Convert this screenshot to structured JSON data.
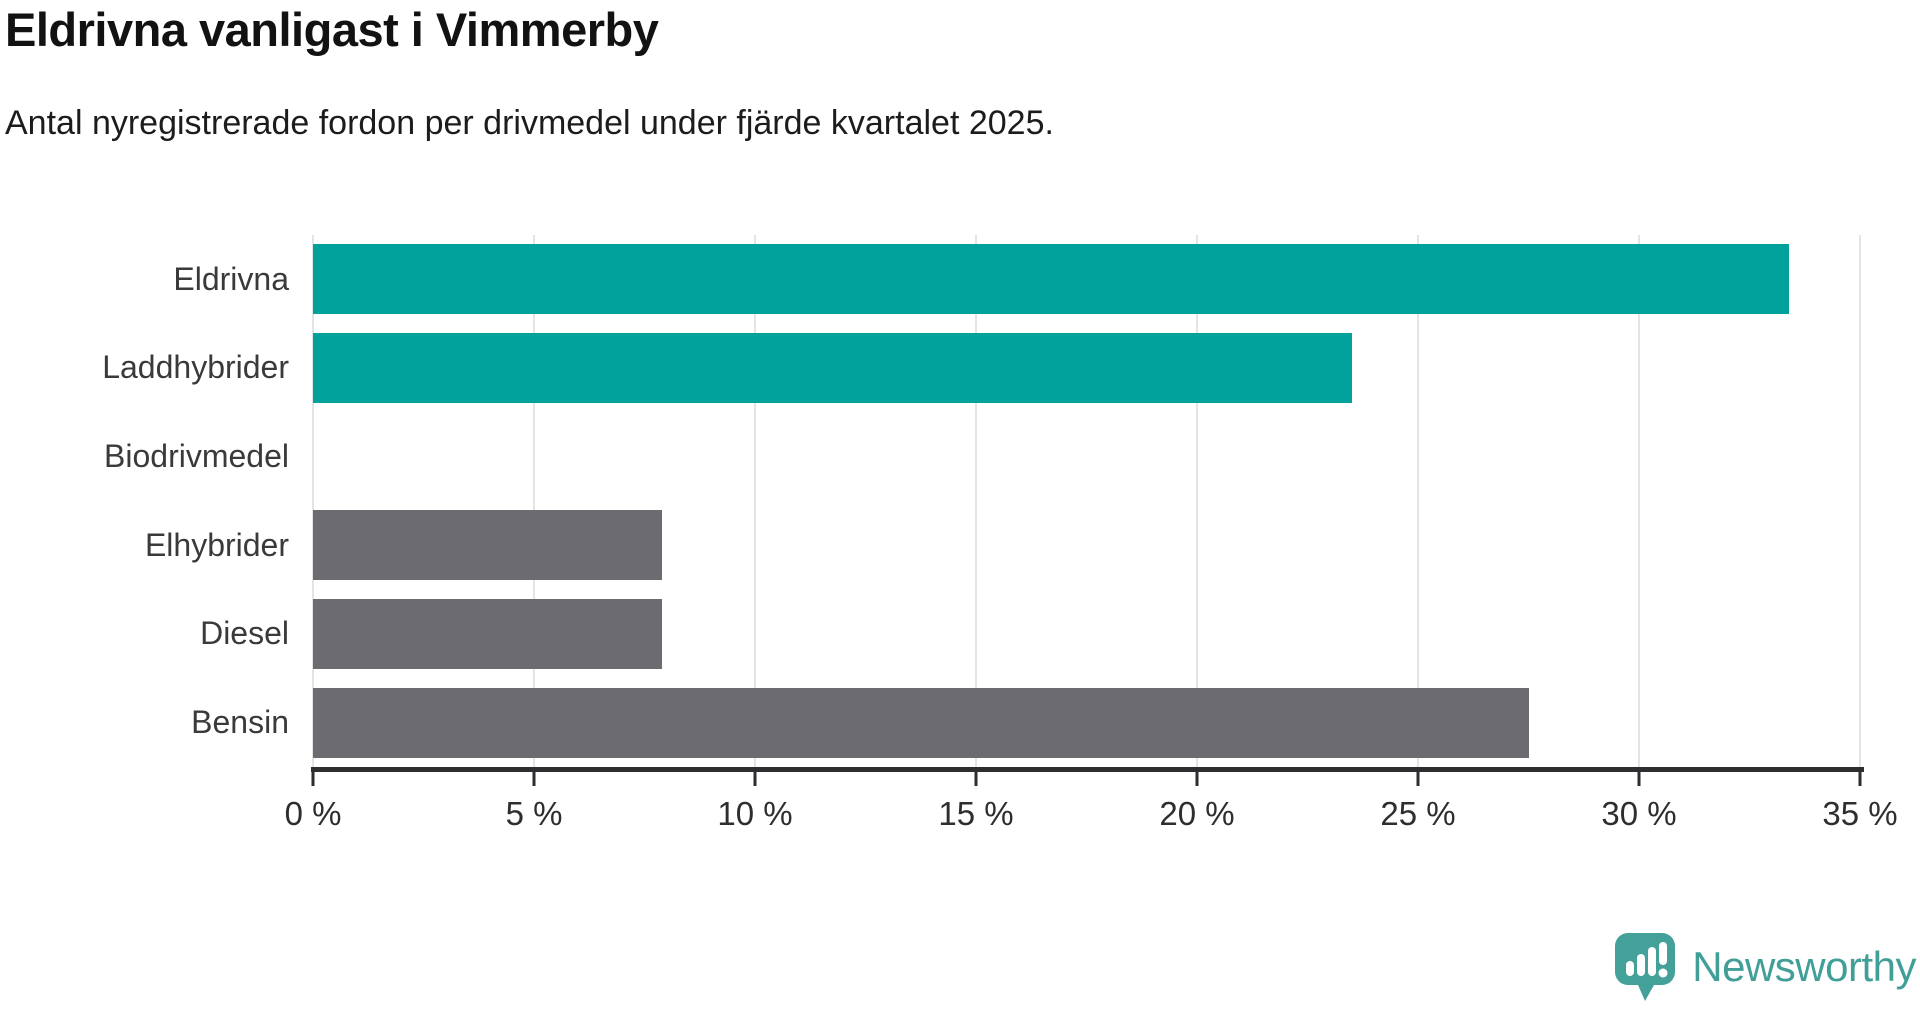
{
  "chart_data": {
    "type": "bar",
    "orientation": "horizontal",
    "title": "Eldrivna vanligast i Vimmerby",
    "subtitle": "Antal nyregistrerade fordon per drivmedel under fjärde kvartalet 2025.",
    "categories": [
      "Eldrivna",
      "Laddhybrider",
      "Biodrivmedel",
      "Elhybrider",
      "Diesel",
      "Bensin"
    ],
    "values": [
      33.4,
      23.5,
      0,
      7.9,
      7.9,
      27.5
    ],
    "unit": "%",
    "bar_colors": [
      "#00a29b",
      "#00a29b",
      "#00a29b",
      "#6c6b70",
      "#6c6b70",
      "#6c6b70"
    ],
    "highlight_color": "#00a29b",
    "default_color": "#6c6b70",
    "xlabel": "",
    "ylabel": "",
    "xlim": [
      0,
      35
    ],
    "tick_values": [
      0,
      5,
      10,
      15,
      20,
      25,
      30,
      35
    ],
    "tick_labels": [
      "0 %",
      "5 %",
      "10 %",
      "15 %",
      "20 %",
      "25 %",
      "30 %",
      "35 %"
    ],
    "grid": true,
    "gridline_color": "#e4e4e4",
    "axis_color": "#2e2e31"
  },
  "footer": {
    "brand": "Newsworthy",
    "brand_color": "#419f97",
    "logo_icon": "speech-bubble-bar-chart-icon"
  }
}
